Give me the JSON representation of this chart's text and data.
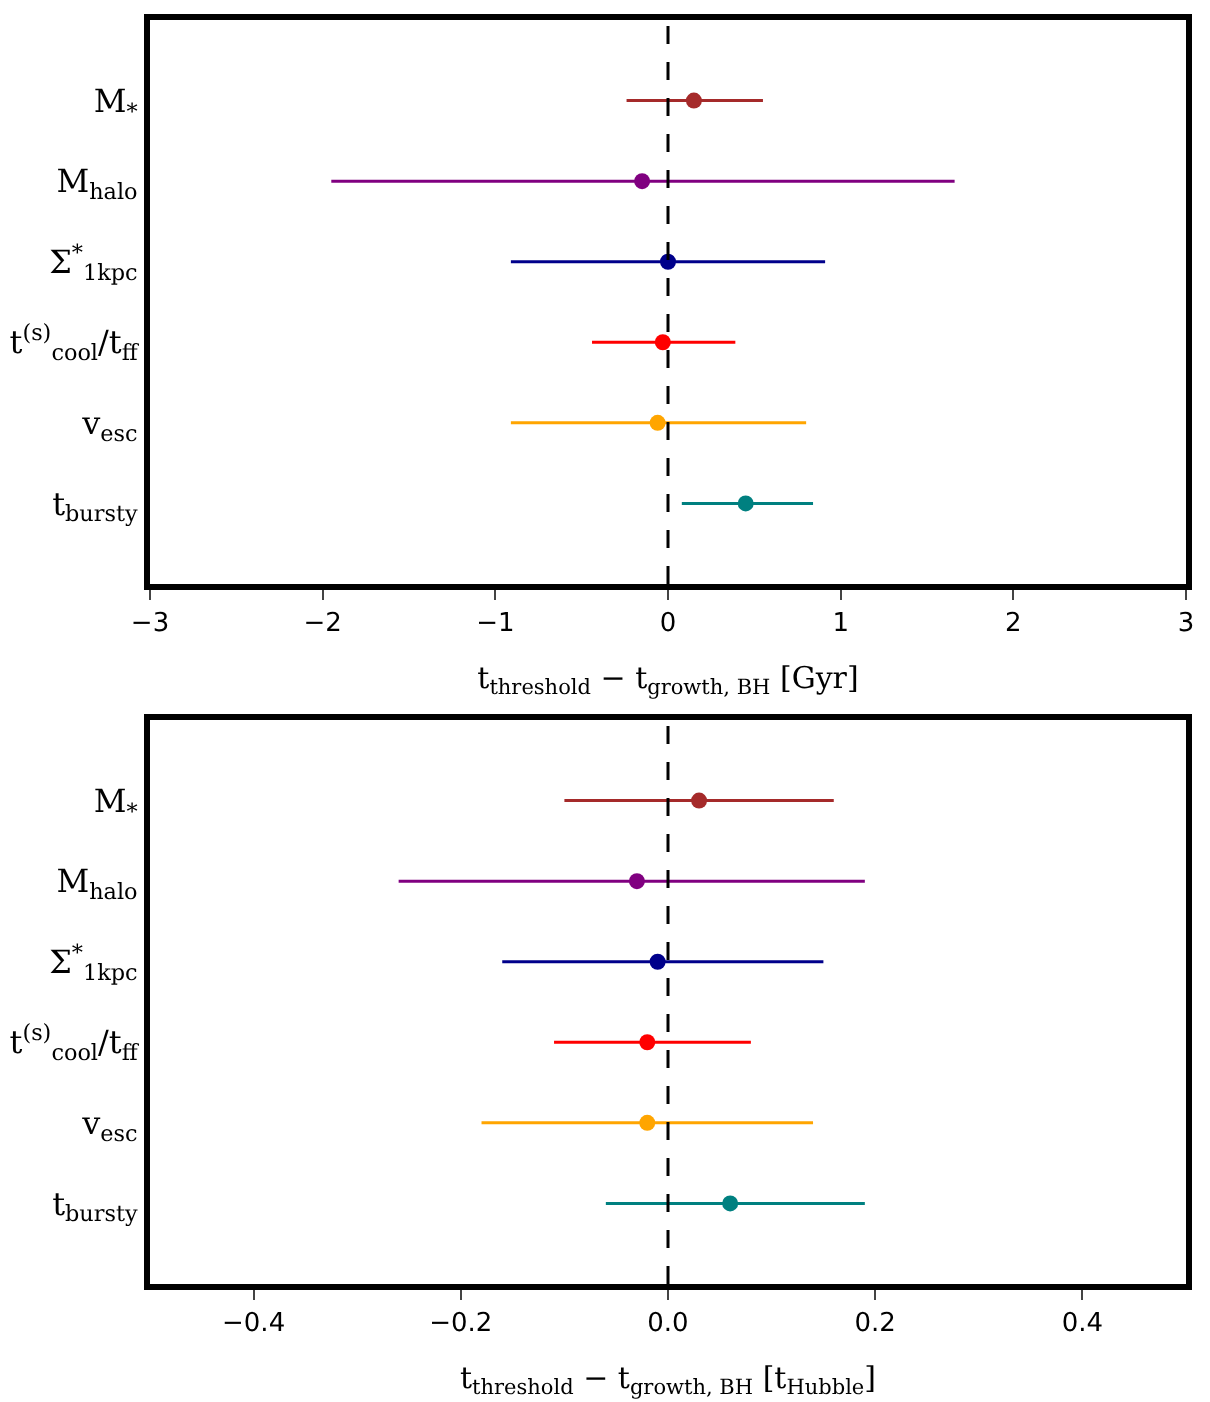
{
  "chart_data": [
    {
      "type": "scatter",
      "orientation": "horizontal",
      "categories": [
        "M$_{*}$",
        "M$_{halo}$",
        "Σ$^{*}$$_{1kpc}$",
        "t$^{(s)}$$_{cool}$/t$_{ff}$",
        "v$_{esc}$",
        "t$_{bursty}$"
      ],
      "values": [
        0.15,
        -0.15,
        0.0,
        -0.03,
        -0.06,
        0.45
      ],
      "errors": [
        [
          -0.24,
          0.55
        ],
        [
          -1.95,
          1.66
        ],
        [
          -0.91,
          0.91
        ],
        [
          -0.44,
          0.39
        ],
        [
          -0.91,
          0.8
        ],
        [
          0.08,
          0.84
        ]
      ],
      "colors": [
        "#a52a2a",
        "#800080",
        "#00008b",
        "#ff0000",
        "#ffa500",
        "#008080"
      ],
      "xlabel": "t$_{threshold}$ − t$_{growth, BH}$ [Gyr]",
      "xlim": [
        -3,
        3
      ],
      "xticks": [
        -3,
        -2,
        -1,
        0,
        1,
        2,
        3
      ],
      "ref_lines": [
        {
          "axis": "x",
          "value": 0,
          "color": "#000000",
          "line_style": "dashed"
        }
      ],
      "marker": "circle",
      "grid": false,
      "legend": false
    },
    {
      "type": "scatter",
      "orientation": "horizontal",
      "categories": [
        "M$_{*}$",
        "M$_{halo}$",
        "Σ$^{*}$$_{1kpc}$",
        "t$^{(s)}$$_{cool}$/t$_{ff}$",
        "v$_{esc}$",
        "t$_{bursty}$"
      ],
      "values": [
        0.03,
        -0.03,
        -0.01,
        -0.02,
        -0.02,
        0.06
      ],
      "errors": [
        [
          -0.1,
          0.16
        ],
        [
          -0.26,
          0.19
        ],
        [
          -0.16,
          0.15
        ],
        [
          -0.11,
          0.08
        ],
        [
          -0.18,
          0.14
        ],
        [
          -0.06,
          0.19
        ]
      ],
      "colors": [
        "#a52a2a",
        "#800080",
        "#00008b",
        "#ff0000",
        "#ffa500",
        "#008080"
      ],
      "xlabel": "t$_{threshold}$ − t$_{growth, BH}$ [t$_{Hubble}$]",
      "xlim": [
        -0.5,
        0.5
      ],
      "xticks": [
        -0.4,
        -0.2,
        {
          "value": 0,
          "label": "0.0"
        },
        0.2,
        0.4
      ],
      "ref_lines": [
        {
          "axis": "x",
          "value": 0,
          "color": "#000000",
          "line_style": "dashed"
        }
      ],
      "marker": "circle",
      "grid": false,
      "legend": false
    }
  ]
}
